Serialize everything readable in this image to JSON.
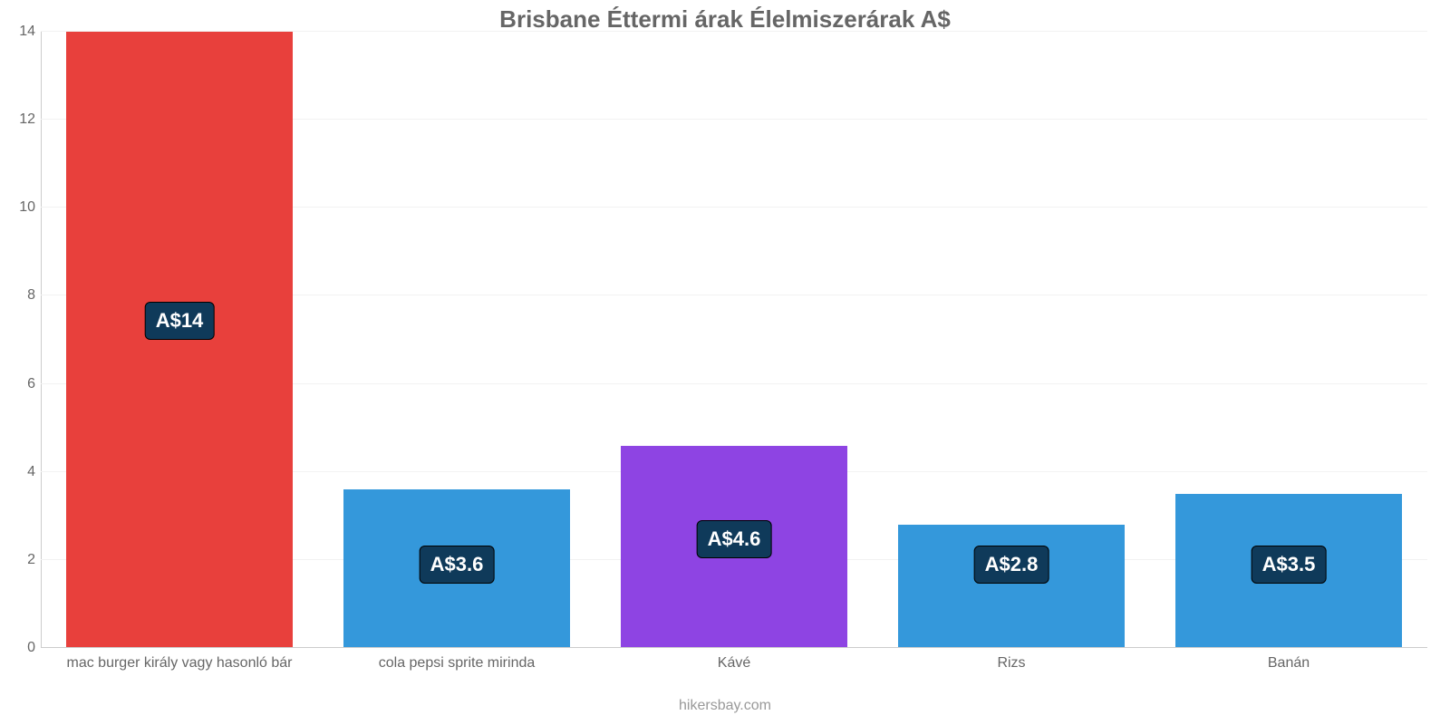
{
  "chart": {
    "type": "bar",
    "title": "Brisbane Éttermi árak Élelmiszerárak A$",
    "title_fontsize": 26,
    "title_color": "#666666",
    "background_color": "#ffffff",
    "grid_color": "#f2f2f2",
    "axis_line_color": "#cccccc",
    "axis_label_color": "#666666",
    "tick_fontsize": 16,
    "xlabel_fontsize": 16,
    "ylim": [
      0,
      14
    ],
    "ytick_step": 2,
    "yticks": [
      0,
      2,
      4,
      6,
      8,
      10,
      12,
      14
    ],
    "bar_width_ratio": 0.82,
    "attribution": "hikersbay.com",
    "attribution_color": "#999999",
    "attribution_fontsize": 16,
    "value_label_bg": "#0f3a5a",
    "value_label_border": "#000000",
    "value_label_color": "#ffffff",
    "value_label_fontsize": 22,
    "categories": [
      "mac burger király vagy hasonló bár",
      "cola pepsi sprite mirinda",
      "Kávé",
      "Rizs",
      "Banán"
    ],
    "values": [
      14,
      3.6,
      4.6,
      2.8,
      3.5
    ],
    "value_labels": [
      "A$14",
      "A$3.6",
      "A$4.6",
      "A$2.8",
      "A$3.5"
    ],
    "bar_colors": [
      "#e8403c",
      "#3498db",
      "#8e44e3",
      "#3498db",
      "#3498db"
    ]
  }
}
